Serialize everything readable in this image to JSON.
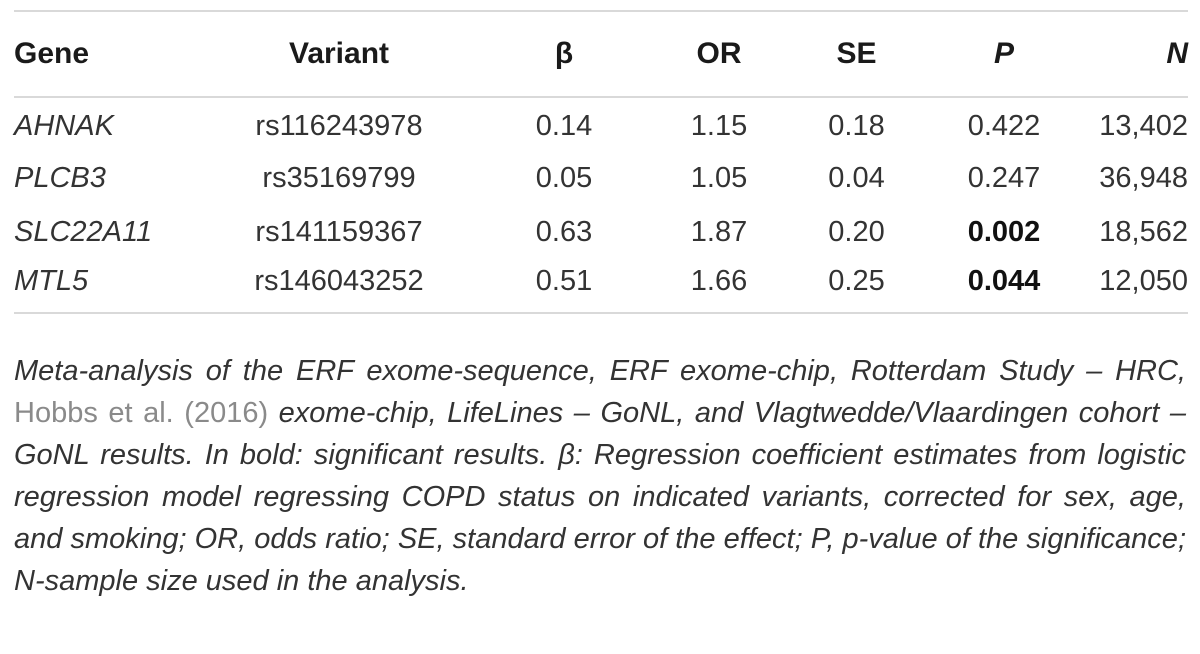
{
  "table": {
    "headers": [
      "Gene",
      "Variant",
      "β",
      "OR",
      "SE",
      "P",
      "N"
    ],
    "rows": [
      {
        "gene": "AHNAK",
        "variant": "rs116243978",
        "beta": "0.14",
        "or": "1.15",
        "se": "0.18",
        "p": "0.422",
        "p_bold": false,
        "n": "13,402"
      },
      {
        "gene": "PLCB3",
        "variant": "rs35169799",
        "beta": "0.05",
        "or": "1.05",
        "se": "0.04",
        "p": "0.247",
        "p_bold": false,
        "n": "36,948"
      },
      {
        "gene": "SLC22A11",
        "variant": "rs141159367",
        "beta": "0.63",
        "or": "1.87",
        "se": "0.20",
        "p": "0.002",
        "p_bold": true,
        "n": "18,562"
      },
      {
        "gene": "MTL5",
        "variant": "rs146043252",
        "beta": "0.51",
        "or": "1.66",
        "se": "0.25",
        "p": "0.044",
        "p_bold": true,
        "n": "12,050"
      }
    ]
  },
  "caption": {
    "part1": "Meta-analysis of the ERF exome-sequence, ERF exome-chip, Rotterdam Study – HRC, ",
    "ref": "Hobbs et al. (2016)",
    "part2": " exome-chip, LifeLines – GoNL, and Vlagtwedde/Vlaardingen cohort – GoNL results. In bold: significant results. β: Regression coefficient estimates from logistic regression model regressing COPD status on indicated variants, corrected for sex, age, and smoking; OR, odds ratio; SE, standard error of the effect; P, p-value of the significance; N-sample size used in the analysis."
  },
  "colors": {
    "rule": "#d9d9d9",
    "text": "#333333",
    "reference_link": "#8a8a8a"
  }
}
